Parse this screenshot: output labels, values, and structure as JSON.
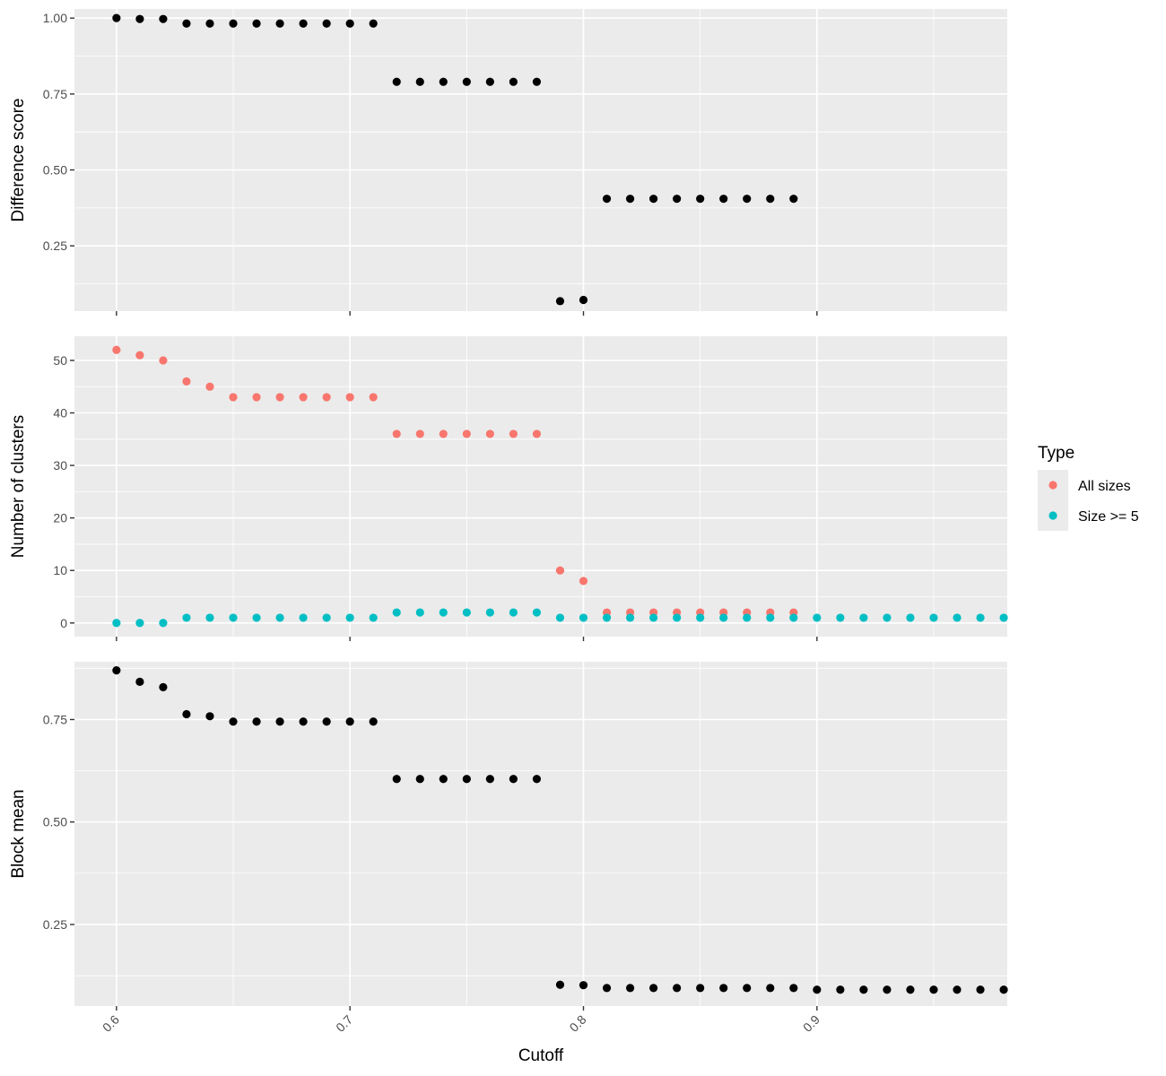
{
  "chart_data": {
    "type": "scatter",
    "shared_x": {
      "label": "Cutoff",
      "xlim": [
        0.582,
        0.9815
      ],
      "ticks": [
        0.6,
        0.7,
        0.8,
        0.9
      ],
      "tick_labels": [
        "0.6",
        "0.7",
        "0.8",
        "0.9"
      ]
    },
    "legend": {
      "title": "Type",
      "position": "right",
      "entries": [
        {
          "label": "All sizes",
          "color": "#F8766D"
        },
        {
          "label": "Size >= 5",
          "color": "#00BFC4"
        }
      ]
    },
    "panels": [
      {
        "ylabel": "Difference score",
        "ylim": [
          0.035,
          1.03
        ],
        "yticks": [
          0.25,
          0.5,
          0.75,
          1.0
        ],
        "ytick_labels": [
          "0.25",
          "0.50",
          "0.75",
          "1.00"
        ],
        "series": [
          {
            "name": "Difference score",
            "color": "#000000",
            "x": [
              0.6,
              0.61,
              0.62,
              0.63,
              0.64,
              0.65,
              0.66,
              0.67,
              0.68,
              0.69,
              0.7,
              0.71,
              0.72,
              0.73,
              0.74,
              0.75,
              0.76,
              0.77,
              0.78,
              0.79,
              0.8,
              0.81,
              0.82,
              0.83,
              0.84,
              0.85,
              0.86,
              0.87,
              0.88,
              0.89
            ],
            "y": [
              1.0,
              0.997,
              0.997,
              0.982,
              0.982,
              0.982,
              0.982,
              0.982,
              0.982,
              0.982,
              0.982,
              0.982,
              0.79,
              0.79,
              0.79,
              0.79,
              0.79,
              0.79,
              0.79,
              0.068,
              0.072,
              0.405,
              0.405,
              0.405,
              0.405,
              0.405,
              0.405,
              0.405,
              0.405,
              0.405
            ]
          }
        ]
      },
      {
        "ylabel": "Number of clusters",
        "ylim": [
          -2.6,
          54.6
        ],
        "yticks": [
          0,
          10,
          20,
          30,
          40,
          50
        ],
        "ytick_labels": [
          "0",
          "10",
          "20",
          "30",
          "40",
          "50"
        ],
        "series": [
          {
            "name": "All sizes",
            "color": "#F8766D",
            "x": [
              0.6,
              0.61,
              0.62,
              0.63,
              0.64,
              0.65,
              0.66,
              0.67,
              0.68,
              0.69,
              0.7,
              0.71,
              0.72,
              0.73,
              0.74,
              0.75,
              0.76,
              0.77,
              0.78,
              0.79,
              0.8,
              0.81,
              0.82,
              0.83,
              0.84,
              0.85,
              0.86,
              0.87,
              0.88,
              0.89
            ],
            "y": [
              52,
              51,
              50,
              46,
              45,
              43,
              43,
              43,
              43,
              43,
              43,
              43,
              36,
              36,
              36,
              36,
              36,
              36,
              36,
              10,
              8,
              2,
              2,
              2,
              2,
              2,
              2,
              2,
              2,
              2
            ]
          },
          {
            "name": "Size >= 5",
            "color": "#00BFC4",
            "x": [
              0.6,
              0.61,
              0.62,
              0.63,
              0.64,
              0.65,
              0.66,
              0.67,
              0.68,
              0.69,
              0.7,
              0.71,
              0.72,
              0.73,
              0.74,
              0.75,
              0.76,
              0.77,
              0.78,
              0.79,
              0.8,
              0.81,
              0.82,
              0.83,
              0.84,
              0.85,
              0.86,
              0.87,
              0.88,
              0.89,
              0.9,
              0.91,
              0.92,
              0.93,
              0.94,
              0.95,
              0.96,
              0.97,
              0.98
            ],
            "y": [
              0,
              0,
              0,
              1,
              1,
              1,
              1,
              1,
              1,
              1,
              1,
              1,
              2,
              2,
              2,
              2,
              2,
              2,
              2,
              1,
              1,
              1,
              1,
              1,
              1,
              1,
              1,
              1,
              1,
              1,
              1,
              1,
              1,
              1,
              1,
              1,
              1,
              1,
              1
            ]
          }
        ]
      },
      {
        "ylabel": "Block mean",
        "ylim": [
          0.051,
          0.891
        ],
        "yticks": [
          0.25,
          0.5,
          0.75
        ],
        "ytick_labels": [
          "0.25",
          "0.50",
          "0.75"
        ],
        "series": [
          {
            "name": "Block mean",
            "color": "#000000",
            "x": [
              0.6,
              0.61,
              0.62,
              0.63,
              0.64,
              0.65,
              0.66,
              0.67,
              0.68,
              0.69,
              0.7,
              0.71,
              0.72,
              0.73,
              0.74,
              0.75,
              0.76,
              0.77,
              0.78,
              0.79,
              0.8,
              0.81,
              0.82,
              0.83,
              0.84,
              0.85,
              0.86,
              0.87,
              0.88,
              0.89,
              0.9,
              0.91,
              0.92,
              0.93,
              0.94,
              0.95,
              0.96,
              0.97,
              0.98
            ],
            "y": [
              0.87,
              0.842,
              0.829,
              0.763,
              0.758,
              0.745,
              0.745,
              0.745,
              0.745,
              0.745,
              0.745,
              0.745,
              0.605,
              0.605,
              0.605,
              0.605,
              0.605,
              0.605,
              0.605,
              0.103,
              0.102,
              0.095,
              0.095,
              0.095,
              0.095,
              0.095,
              0.095,
              0.095,
              0.095,
              0.095,
              0.091,
              0.091,
              0.091,
              0.091,
              0.091,
              0.091,
              0.091,
              0.091,
              0.091
            ]
          }
        ]
      }
    ]
  }
}
